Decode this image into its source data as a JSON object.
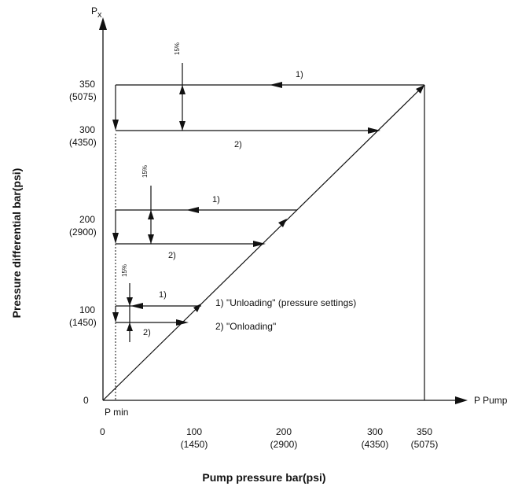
{
  "y_axis": {
    "symbol": "P",
    "symbol_sub": "x",
    "title": "Pressure differential  bar(psi)",
    "origin_label": "0",
    "ticks": [
      {
        "value": "100",
        "sub": "(1450)"
      },
      {
        "value": "200",
        "sub": "(2900)"
      },
      {
        "value": "300",
        "sub": "(4350)"
      },
      {
        "value": "350",
        "sub": "(5075)"
      }
    ]
  },
  "x_axis": {
    "end_label": "P  Pump",
    "title": "Pump pressure  bar(psi)",
    "origin_label": "0",
    "pmin_label": "P min",
    "ticks": [
      {
        "value": "100",
        "sub": "(1450)"
      },
      {
        "value": "200",
        "sub": "(2900)"
      },
      {
        "value": "300",
        "sub": "(4350)"
      },
      {
        "value": "350",
        "sub": "(5075)"
      }
    ]
  },
  "cycles": [
    {
      "unload_marker": "1)",
      "onload_marker": "2)",
      "percent": "15%"
    },
    {
      "unload_marker": "1)",
      "onload_marker": "2)",
      "percent": "15%"
    },
    {
      "unload_marker": "1)",
      "onload_marker": "2)",
      "percent": "15%"
    }
  ],
  "legend": {
    "item1": "1) \"Unloading\" (pressure settings)",
    "item2": "2) \"Onloading\""
  }
}
